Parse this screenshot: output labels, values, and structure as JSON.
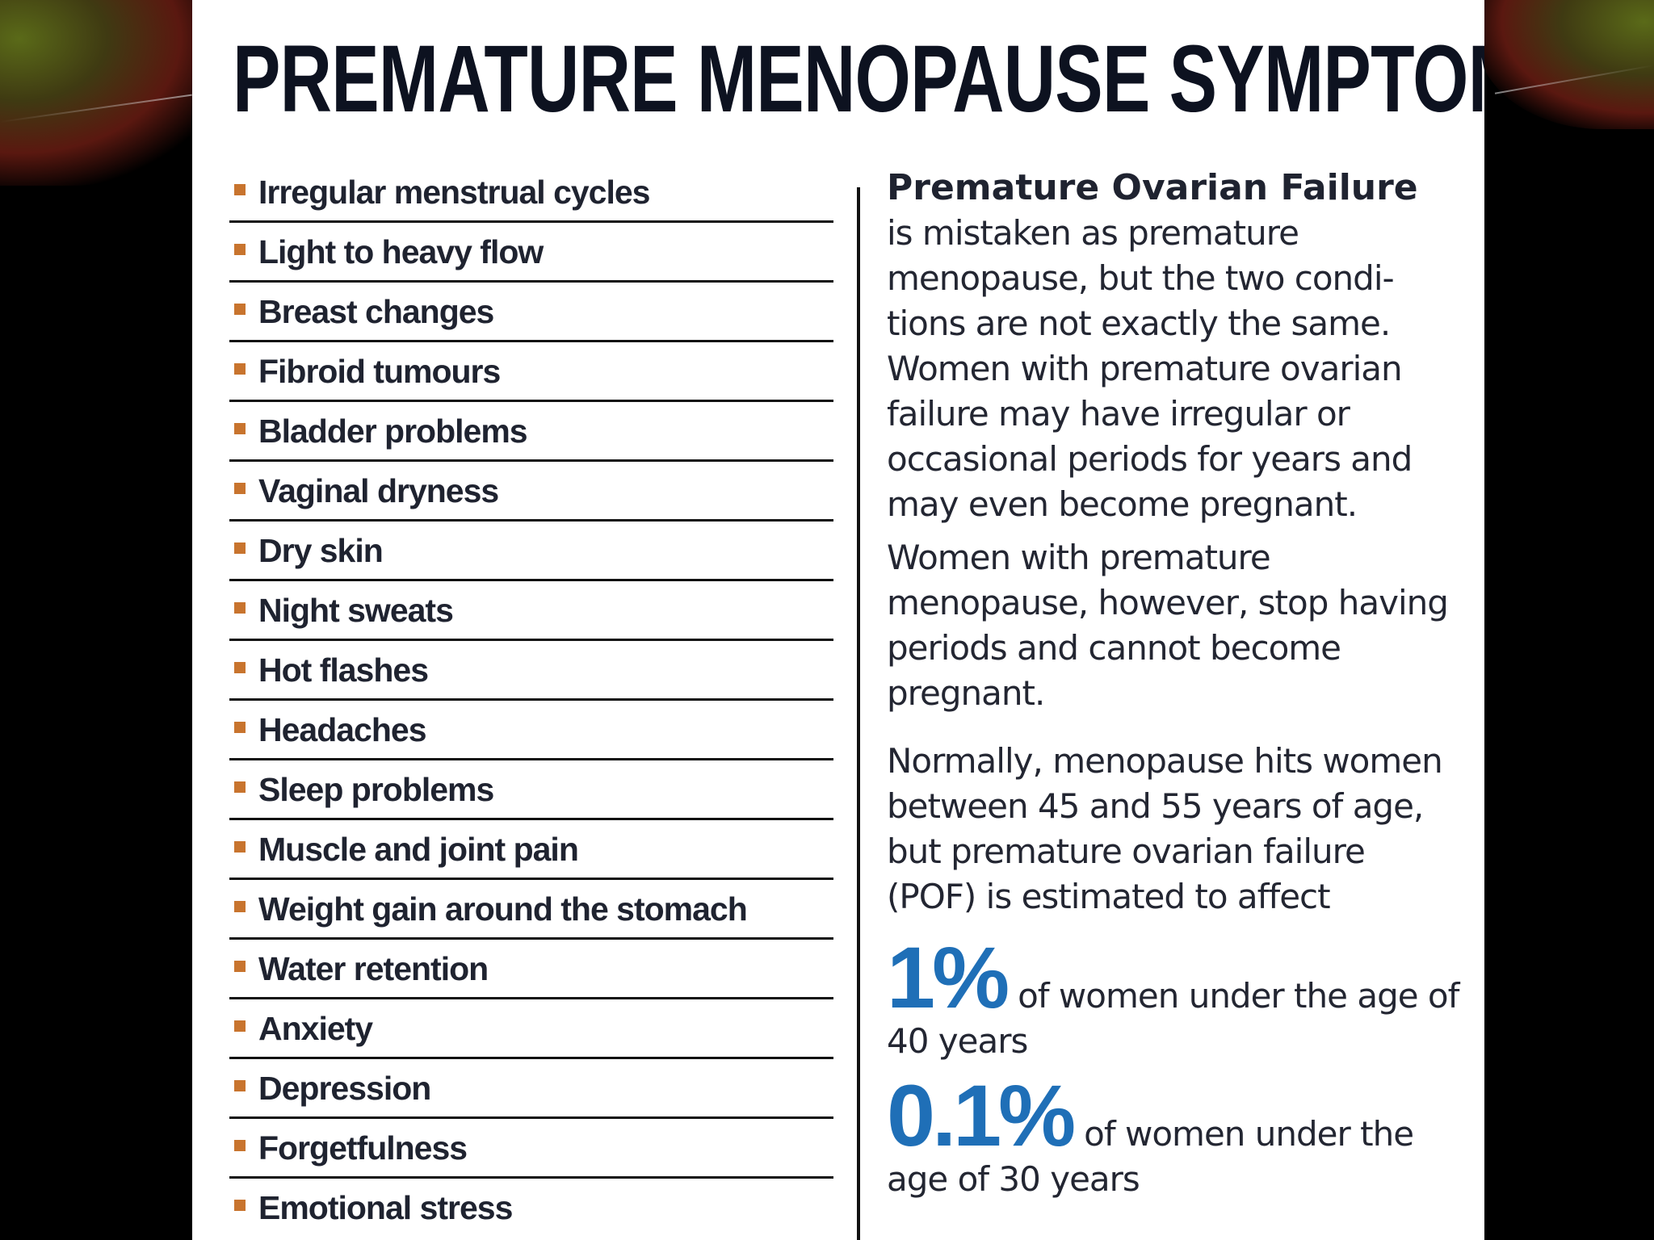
{
  "title": "PREMATURE MENOPAUSE SYMPTOMS",
  "symptoms": [
    "Irregular menstrual cycles",
    "Light to heavy flow",
    "Breast changes",
    "Fibroid tumours",
    "Bladder problems",
    "Vaginal dryness",
    "Dry skin",
    "Night sweats",
    "Hot flashes",
    "Headaches",
    "Sleep problems",
    "Muscle and joint pain",
    "Weight gain around the stomach",
    "Water retention",
    "Anxiety",
    "Depression",
    "Forgetfulness",
    "Emotional stress"
  ],
  "info": {
    "heading": "Premature Ovarian Failure",
    "para1": "is mistaken as premature menopause, but the two condi-tions are not exactly the same. Women with premature ovarian failure may have irregular or occasional periods for years and may even become pregnant.",
    "para2": "Women with premature menopause, however, stop having periods and cannot become pregnant.",
    "para3": "Normally, menopause hits women between 45 and 55 years of age, but premature ovarian failure (POF) is estimated to affect",
    "stats": [
      {
        "value": "1%",
        "text": "of women under the age of 40 years"
      },
      {
        "value": "0.1%",
        "text": "of women under the age of 30 years"
      }
    ]
  },
  "colors": {
    "bullet": "#c8742e",
    "stat": "#1f6fb7",
    "title": "#0d1220",
    "slide_background": "#000000"
  }
}
